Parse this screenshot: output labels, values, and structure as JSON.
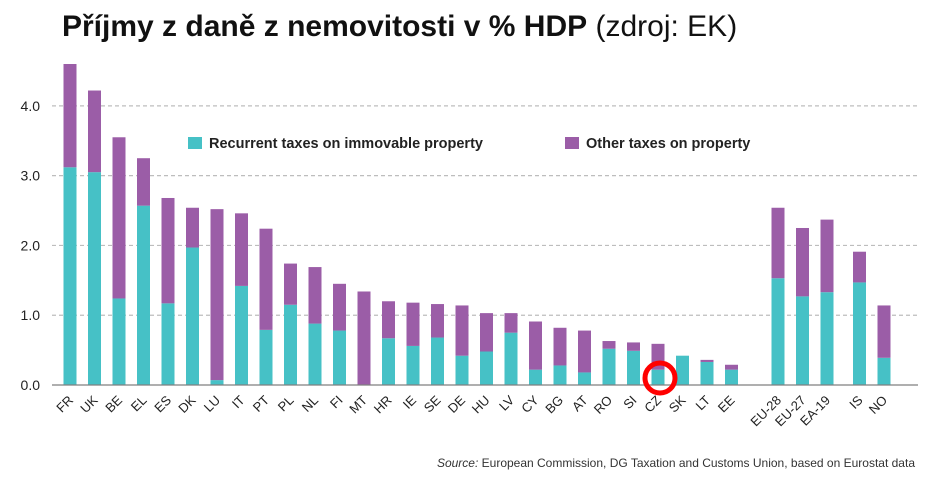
{
  "title": {
    "main": "Příjmy z daně z nemovitosti v % HDP",
    "sub": "(zdroj: EK)"
  },
  "source": {
    "label": "Source:",
    "text": "European Commission, DG Taxation and Customs Union, based on Eurostat data"
  },
  "colors": {
    "recurrent": "#46c1c6",
    "other": "#9b5da7",
    "grid": "#bdbdbd",
    "axis": "#7f7f7f",
    "highlight": "#ff0000"
  },
  "chart_data": {
    "type": "bar",
    "stacked": true,
    "categories": [
      "FR",
      "UK",
      "BE",
      "EL",
      "ES",
      "DK",
      "LU",
      "IT",
      "PT",
      "PL",
      "NL",
      "FI",
      "MT",
      "HR",
      "IE",
      "SE",
      "DE",
      "HU",
      "LV",
      "CY",
      "BG",
      "AT",
      "RO",
      "SI",
      "CZ",
      "SK",
      "LT",
      "EE",
      "EU-28",
      "EU-27",
      "EA-19",
      "IS",
      "NO"
    ],
    "slot_groups": [
      0,
      0,
      0,
      0,
      0,
      0,
      0,
      0,
      0,
      0,
      0,
      0,
      0,
      0,
      0,
      0,
      0,
      0,
      0,
      0,
      0,
      0,
      0,
      0,
      0,
      0,
      0,
      0,
      1,
      1,
      1,
      2,
      2
    ],
    "series": [
      {
        "name": "Recurrent taxes on immovable property",
        "values": [
          3.12,
          3.05,
          1.24,
          2.57,
          1.17,
          1.97,
          0.07,
          1.42,
          0.79,
          1.15,
          0.88,
          0.78,
          0.0,
          0.67,
          0.56,
          0.68,
          0.42,
          0.48,
          0.75,
          0.22,
          0.28,
          0.18,
          0.52,
          0.49,
          0.22,
          0.42,
          0.33,
          0.22,
          1.53,
          1.27,
          1.33,
          1.47,
          0.39
        ]
      },
      {
        "name": "Other taxes on property",
        "values": [
          1.48,
          1.17,
          2.31,
          0.68,
          1.51,
          0.57,
          2.45,
          1.04,
          1.45,
          0.59,
          0.81,
          0.67,
          1.34,
          0.53,
          0.62,
          0.48,
          0.72,
          0.55,
          0.28,
          0.69,
          0.54,
          0.6,
          0.11,
          0.12,
          0.37,
          0.0,
          0.03,
          0.07,
          1.01,
          0.98,
          1.04,
          0.44,
          0.75
        ]
      }
    ],
    "y_ticks": [
      "0.0",
      "1.0",
      "2.0",
      "3.0",
      "4.0"
    ],
    "ylim": [
      0,
      4.6
    ],
    "grid": true,
    "legend": "top-center",
    "highlight_category": "CZ"
  }
}
